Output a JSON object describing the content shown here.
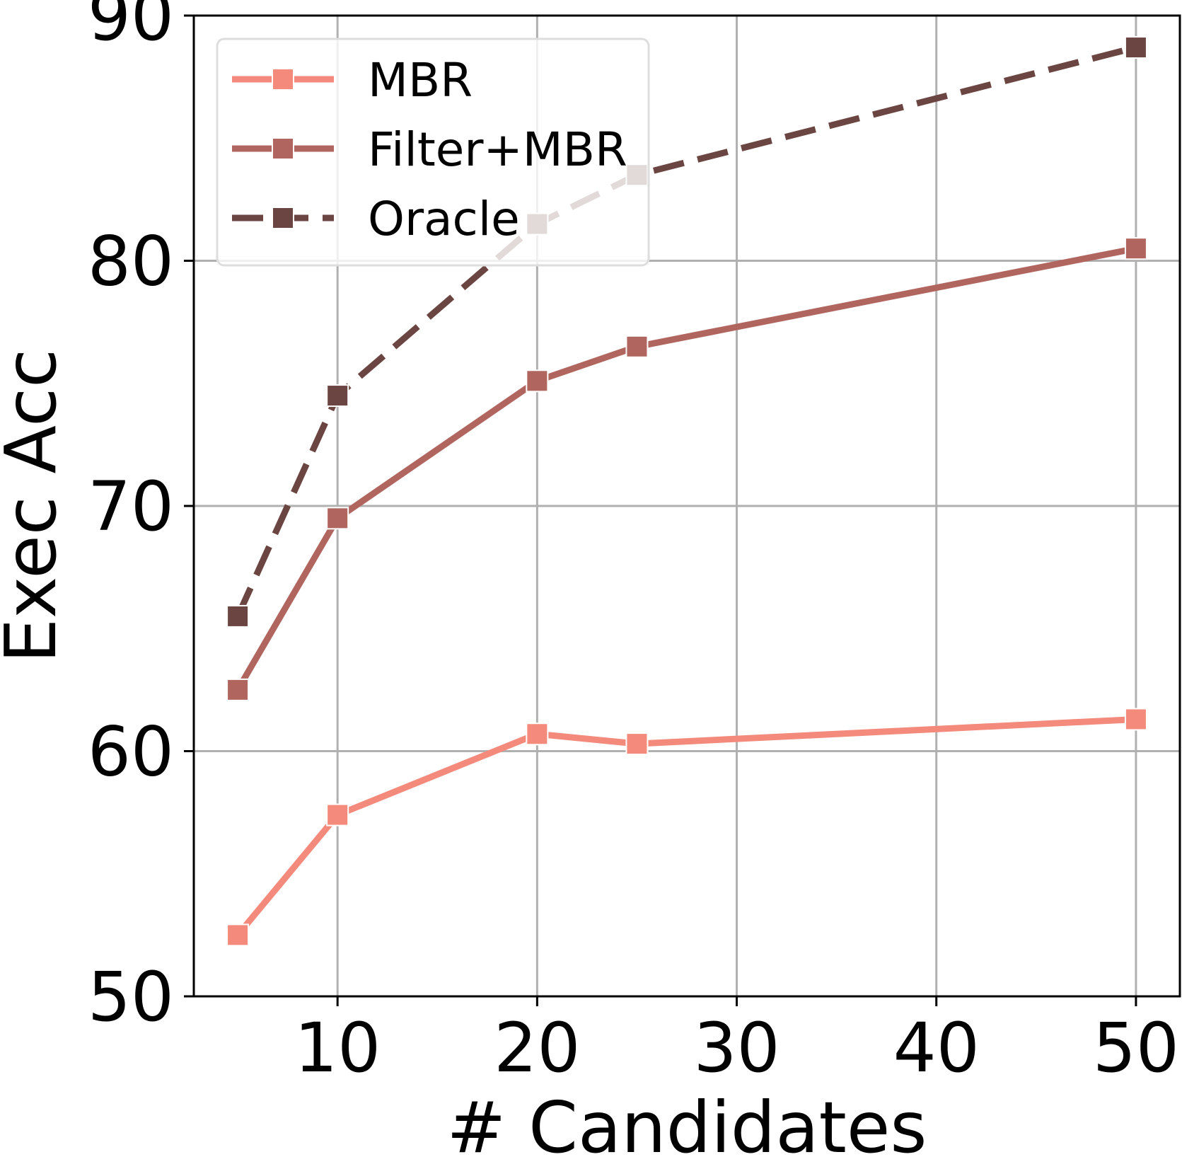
{
  "chart_data": {
    "type": "line",
    "xlabel": "# Candidates",
    "ylabel": "Exec Acc",
    "xlim": [
      2.8,
      52.2
    ],
    "ylim": [
      50,
      90
    ],
    "xticks": [
      10,
      20,
      30,
      40,
      50
    ],
    "yticks": [
      50,
      60,
      70,
      80,
      90
    ],
    "grid": true,
    "legend_position": "top-left",
    "x": [
      5,
      10,
      20,
      25,
      50
    ],
    "series": [
      {
        "name": "MBR",
        "values": [
          52.5,
          57.4,
          60.7,
          60.3,
          61.3
        ],
        "color": "#f48a7c",
        "dashed": false
      },
      {
        "name": "Filter+MBR",
        "values": [
          62.5,
          69.5,
          75.1,
          76.5,
          80.5
        ],
        "color": "#b0665f",
        "dashed": false
      },
      {
        "name": "Oracle",
        "values": [
          65.5,
          74.5,
          81.5,
          83.5,
          88.7
        ],
        "color": "#6b4541",
        "dashed": true
      }
    ]
  }
}
